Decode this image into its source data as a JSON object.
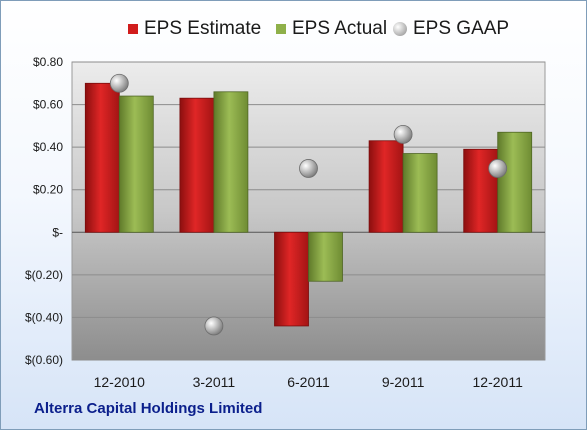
{
  "legend": [
    {
      "label": "EPS Estimate",
      "color": "#d11c1c",
      "shape": "square"
    },
    {
      "label": "EPS Actual",
      "color": "#8fb04a",
      "shape": "square"
    },
    {
      "label": "EPS GAAP",
      "color": "#a8a8a8",
      "shape": "circle"
    }
  ],
  "footer_title": "Alterra Capital Holdings Limited",
  "chart_data": {
    "type": "bar",
    "categories": [
      "12-2010",
      "3-2011",
      "6-2011",
      "9-2011",
      "12-2011"
    ],
    "series": [
      {
        "name": "EPS Estimate",
        "type": "bar",
        "color": "#d11c1c",
        "values": [
          0.7,
          0.63,
          -0.44,
          0.43,
          0.39
        ]
      },
      {
        "name": "EPS Actual",
        "type": "bar",
        "color": "#8fb04a",
        "values": [
          0.64,
          0.66,
          -0.23,
          0.37,
          0.47
        ]
      },
      {
        "name": "EPS GAAP",
        "type": "scatter",
        "color": "#a8a8a8",
        "values": [
          0.7,
          -0.44,
          0.3,
          0.46,
          0.3
        ]
      }
    ],
    "yticks": [
      0.8,
      0.6,
      0.4,
      0.2,
      0,
      -0.2,
      -0.4,
      -0.6
    ],
    "ytick_labels": [
      "$0.80",
      "$0.60",
      "$0.40",
      "$0.20",
      "$-",
      "$(0.20)",
      "$(0.40)",
      "$(0.60)"
    ],
    "ylim": [
      -0.6,
      0.8
    ],
    "grid": true,
    "legend_position": "top"
  }
}
